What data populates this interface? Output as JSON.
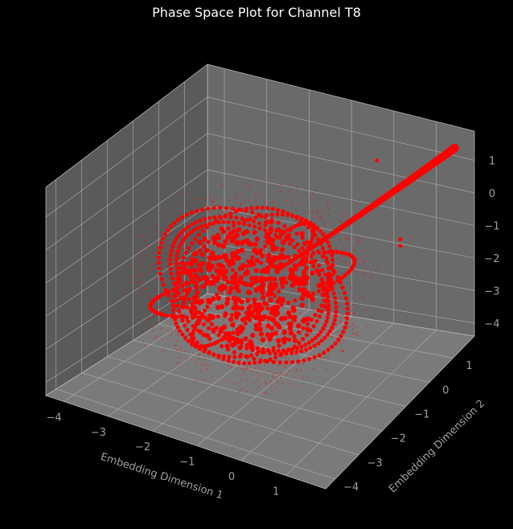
{
  "chart_data": {
    "type": "scatter",
    "projection": "3d",
    "title": "Phase Space Plot for Channel T8",
    "xlabel": "Embedding Dimension 1",
    "ylabel": "Embedding Dimension 2",
    "zlabel": "",
    "xlim": [
      -4.4,
      1.9
    ],
    "ylim": [
      -4.4,
      1.9
    ],
    "zlim": [
      -4.4,
      1.9
    ],
    "x_ticks": [
      "−4",
      "−3",
      "−2",
      "−1",
      "0",
      "1"
    ],
    "y_ticks": [
      "−4",
      "−3",
      "−2",
      "−1",
      "0",
      "1"
    ],
    "z_ticks": [
      "−4",
      "−3",
      "−2",
      "−1",
      "0",
      "1"
    ],
    "series": [
      {
        "color": "#ff0000",
        "marker": "o"
      }
    ],
    "structure": {
      "core_center": [
        -1.4,
        -1.4,
        -1.6
      ],
      "core_radius": 1.6,
      "ring_radius": 2.3,
      "trail_start": [
        -1.0,
        -1.0,
        -1.2
      ],
      "trail_end": [
        1.6,
        1.6,
        1.5
      ]
    },
    "background": "#000000",
    "pane_color": "#7a7a7a",
    "grid": true
  }
}
